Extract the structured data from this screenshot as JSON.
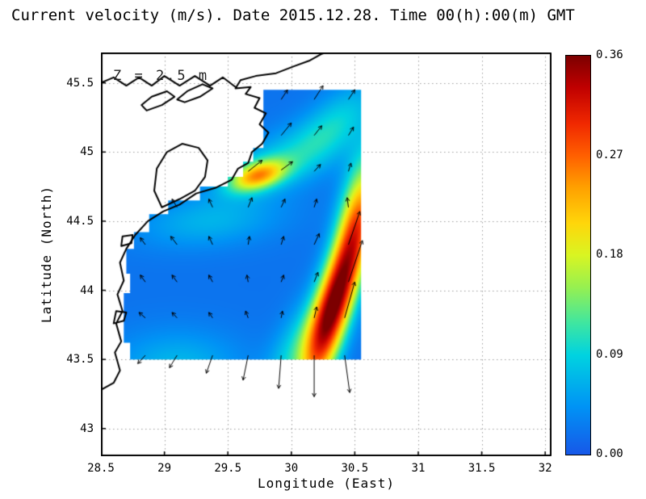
{
  "style": {
    "background": "#ffffff",
    "text_color": "#000000",
    "grid_color": "#9a9a9a",
    "coast_color": "#000000",
    "arrow_color": "#000000",
    "frame_color": "#000000"
  },
  "chart_data": {
    "type": "heatmap",
    "title": "Current velocity (m/s). Date 2015.12.28. Time 00(h):00(m) GMT",
    "units": "m/s",
    "date": "2015.12.28",
    "time": "00(h):00(m) GMT",
    "depth_label": "Z = 2.5 m",
    "depth_m": 2.5,
    "xlabel": "Longitude (East)",
    "ylabel": "Latitude (North)",
    "xlim": [
      28.5,
      32.05
    ],
    "ylim": [
      42.8,
      45.72
    ],
    "x_ticks": [
      "28.5",
      "29",
      "29.5",
      "30",
      "30.5",
      "31",
      "31.5",
      "32"
    ],
    "y_ticks": [
      "43",
      "43.5",
      "44",
      "44.5",
      "45",
      "45.5"
    ],
    "grid": true,
    "value_range": [
      0,
      0.36
    ],
    "base_value": 0.02,
    "colorbar": {
      "ticks": [
        "0.00",
        "0.09",
        "0.18",
        "0.27",
        "0.36"
      ],
      "stops": [
        [
          0.0,
          "#1758e8"
        ],
        [
          0.12,
          "#0093f5"
        ],
        [
          0.25,
          "#00d3e0"
        ],
        [
          0.33,
          "#3fe6a0"
        ],
        [
          0.42,
          "#97f050"
        ],
        [
          0.5,
          "#d9f522"
        ],
        [
          0.58,
          "#ffd60a"
        ],
        [
          0.67,
          "#ffa000"
        ],
        [
          0.75,
          "#ff5f00"
        ],
        [
          0.83,
          "#f02800"
        ],
        [
          0.92,
          "#c00000"
        ],
        [
          1.0,
          "#7c0000"
        ]
      ]
    },
    "region_polygon": [
      [
        29.78,
        45.45
      ],
      [
        30.55,
        45.45
      ],
      [
        30.55,
        43.5
      ],
      [
        28.73,
        43.5
      ],
      [
        28.73,
        43.62
      ],
      [
        28.68,
        43.62
      ],
      [
        28.68,
        43.98
      ],
      [
        28.73,
        43.98
      ],
      [
        28.73,
        44.12
      ],
      [
        28.7,
        44.12
      ],
      [
        28.7,
        44.3
      ],
      [
        28.76,
        44.3
      ],
      [
        28.76,
        44.42
      ],
      [
        28.88,
        44.42
      ],
      [
        28.88,
        44.55
      ],
      [
        29.03,
        44.55
      ],
      [
        29.03,
        44.65
      ],
      [
        29.28,
        44.65
      ],
      [
        29.28,
        44.75
      ],
      [
        29.5,
        44.75
      ],
      [
        29.5,
        44.82
      ],
      [
        29.62,
        44.82
      ],
      [
        29.62,
        44.93
      ],
      [
        29.7,
        44.93
      ],
      [
        29.7,
        45.03
      ],
      [
        29.78,
        45.03
      ]
    ],
    "velocity_blobs": [
      {
        "name": "delta-jet",
        "lon": 29.73,
        "lat": 44.83,
        "sx": 0.16,
        "sy": 0.07,
        "angle": 15,
        "peak": 0.19
      },
      {
        "name": "delta-halo",
        "lon": 29.95,
        "lat": 44.95,
        "sx": 0.35,
        "sy": 0.14,
        "angle": 20,
        "peak": 0.06
      },
      {
        "name": "ne-streak",
        "lon": 30.35,
        "lat": 45.22,
        "sx": 0.28,
        "sy": 0.13,
        "angle": 40,
        "peak": 0.06
      },
      {
        "name": "rim-current-core",
        "lon": 30.34,
        "lat": 43.92,
        "sx": 0.5,
        "sy": 0.1,
        "angle": 72,
        "peak": 0.34
      },
      {
        "name": "rim-current-tail",
        "lon": 30.52,
        "lat": 44.6,
        "sx": 0.3,
        "sy": 0.1,
        "angle": 80,
        "peak": 0.12
      },
      {
        "name": "band-west-halo",
        "lon": 30.05,
        "lat": 43.6,
        "sx": 0.3,
        "sy": 0.12,
        "angle": 60,
        "peak": 0.07
      },
      {
        "name": "midshelf-patch",
        "lon": 29.35,
        "lat": 44.5,
        "sx": 0.4,
        "sy": 0.13,
        "angle": 5,
        "peak": 0.045
      },
      {
        "name": "south-patch",
        "lon": 29.1,
        "lat": 43.45,
        "sx": 0.35,
        "sy": 0.18,
        "angle": 0,
        "peak": 0.05
      }
    ],
    "vectors": [
      [
        29.92,
        45.38,
        0.05,
        0.07
      ],
      [
        30.18,
        45.38,
        0.07,
        0.1
      ],
      [
        30.45,
        45.38,
        0.05,
        0.07
      ],
      [
        29.92,
        45.12,
        0.08,
        0.09
      ],
      [
        30.18,
        45.12,
        0.06,
        0.07
      ],
      [
        30.45,
        45.12,
        0.04,
        0.06
      ],
      [
        29.66,
        44.86,
        0.11,
        0.08
      ],
      [
        29.92,
        44.87,
        0.09,
        0.06
      ],
      [
        30.18,
        44.86,
        0.05,
        0.05
      ],
      [
        30.45,
        44.86,
        0.02,
        0.06
      ],
      [
        29.1,
        44.6,
        -0.04,
        0.06
      ],
      [
        29.38,
        44.6,
        -0.03,
        0.06
      ],
      [
        29.66,
        44.6,
        0.03,
        0.07
      ],
      [
        29.92,
        44.6,
        0.03,
        0.06
      ],
      [
        30.18,
        44.6,
        0.02,
        0.06
      ],
      [
        30.45,
        44.6,
        -0.01,
        0.07
      ],
      [
        28.85,
        44.33,
        -0.04,
        0.05
      ],
      [
        29.1,
        44.33,
        -0.05,
        0.06
      ],
      [
        29.38,
        44.33,
        -0.03,
        0.06
      ],
      [
        29.66,
        44.33,
        0.01,
        0.06
      ],
      [
        29.92,
        44.33,
        0.02,
        0.06
      ],
      [
        30.18,
        44.33,
        0.04,
        0.08
      ],
      [
        30.45,
        44.33,
        0.09,
        0.24
      ],
      [
        28.85,
        44.06,
        -0.04,
        0.05
      ],
      [
        29.1,
        44.06,
        -0.04,
        0.05
      ],
      [
        29.38,
        44.06,
        -0.03,
        0.05
      ],
      [
        29.66,
        44.06,
        -0.01,
        0.05
      ],
      [
        29.92,
        44.06,
        0.02,
        0.05
      ],
      [
        30.18,
        44.06,
        0.03,
        0.07
      ],
      [
        30.45,
        44.06,
        0.11,
        0.3
      ],
      [
        28.85,
        43.8,
        -0.05,
        0.04
      ],
      [
        29.1,
        43.8,
        -0.04,
        0.04
      ],
      [
        29.38,
        43.8,
        -0.03,
        0.04
      ],
      [
        29.66,
        43.8,
        -0.02,
        0.05
      ],
      [
        29.92,
        43.8,
        0.01,
        0.05
      ],
      [
        30.18,
        43.8,
        0.02,
        0.08
      ],
      [
        30.42,
        43.8,
        0.08,
        0.26
      ],
      [
        28.85,
        43.53,
        -0.06,
        -0.06
      ],
      [
        29.1,
        43.53,
        -0.06,
        -0.09
      ],
      [
        29.38,
        43.53,
        -0.05,
        -0.13
      ],
      [
        29.66,
        43.53,
        -0.04,
        -0.18
      ],
      [
        29.92,
        43.53,
        -0.02,
        -0.24
      ],
      [
        30.18,
        43.53,
        0.0,
        -0.3
      ],
      [
        30.42,
        43.53,
        0.04,
        -0.27
      ]
    ],
    "coastline_paths": [
      {
        "name": "main-coast",
        "closed": false,
        "points": [
          [
            28.5,
            43.28
          ],
          [
            28.6,
            43.33
          ],
          [
            28.65,
            43.42
          ],
          [
            28.61,
            43.55
          ],
          [
            28.66,
            43.63
          ],
          [
            28.62,
            43.76
          ],
          [
            28.67,
            43.85
          ],
          [
            28.63,
            43.97
          ],
          [
            28.68,
            44.07
          ],
          [
            28.65,
            44.2
          ],
          [
            28.7,
            44.3
          ],
          [
            28.77,
            44.4
          ],
          [
            28.87,
            44.5
          ],
          [
            28.99,
            44.57
          ],
          [
            29.12,
            44.62
          ],
          [
            29.25,
            44.7
          ],
          [
            29.4,
            44.74
          ],
          [
            29.53,
            44.8
          ],
          [
            29.58,
            44.88
          ],
          [
            29.66,
            44.92
          ],
          [
            29.69,
            45.0
          ],
          [
            29.77,
            45.06
          ],
          [
            29.82,
            45.14
          ],
          [
            29.75,
            45.2
          ],
          [
            29.8,
            45.28
          ],
          [
            29.71,
            45.32
          ],
          [
            29.75,
            45.39
          ],
          [
            29.64,
            45.42
          ],
          [
            29.68,
            45.47
          ],
          [
            29.56,
            45.46
          ],
          [
            29.6,
            45.52
          ],
          [
            29.72,
            45.55
          ],
          [
            29.88,
            45.57
          ],
          [
            30.02,
            45.62
          ],
          [
            30.14,
            45.66
          ],
          [
            30.24,
            45.71
          ],
          [
            30.3,
            45.73
          ]
        ]
      },
      {
        "name": "razim-lagoon",
        "closed": true,
        "points": [
          [
            28.98,
            44.6
          ],
          [
            29.12,
            44.66
          ],
          [
            29.24,
            44.72
          ],
          [
            29.32,
            44.82
          ],
          [
            29.34,
            44.94
          ],
          [
            29.27,
            45.03
          ],
          [
            29.14,
            45.06
          ],
          [
            29.02,
            45.0
          ],
          [
            28.94,
            44.88
          ],
          [
            28.92,
            44.72
          ]
        ]
      },
      {
        "name": "north-lagoon-chain",
        "closed": false,
        "points": [
          [
            28.5,
            45.5
          ],
          [
            28.6,
            45.54
          ],
          [
            28.7,
            45.48
          ],
          [
            28.8,
            45.54
          ],
          [
            28.9,
            45.48
          ],
          [
            29.0,
            45.55
          ],
          [
            29.12,
            45.48
          ],
          [
            29.24,
            45.55
          ],
          [
            29.36,
            45.48
          ],
          [
            29.46,
            45.54
          ],
          [
            29.56,
            45.47
          ]
        ]
      },
      {
        "name": "lagoon-a",
        "closed": true,
        "points": [
          [
            28.86,
            45.3
          ],
          [
            28.98,
            45.34
          ],
          [
            29.08,
            45.4
          ],
          [
            29.02,
            45.44
          ],
          [
            28.9,
            45.4
          ],
          [
            28.82,
            45.34
          ]
        ]
      },
      {
        "name": "lagoon-b",
        "closed": true,
        "points": [
          [
            29.16,
            45.36
          ],
          [
            29.28,
            45.4
          ],
          [
            29.38,
            45.46
          ],
          [
            29.3,
            45.49
          ],
          [
            29.18,
            45.44
          ],
          [
            29.1,
            45.38
          ]
        ]
      },
      {
        "name": "coastal-lake-1",
        "closed": true,
        "points": [
          [
            28.6,
            43.76
          ],
          [
            28.68,
            43.78
          ],
          [
            28.7,
            43.84
          ],
          [
            28.62,
            43.85
          ]
        ]
      },
      {
        "name": "coastal-lake-2",
        "closed": true,
        "points": [
          [
            28.66,
            44.32
          ],
          [
            28.74,
            44.34
          ],
          [
            28.75,
            44.4
          ],
          [
            28.67,
            44.39
          ]
        ]
      }
    ]
  }
}
